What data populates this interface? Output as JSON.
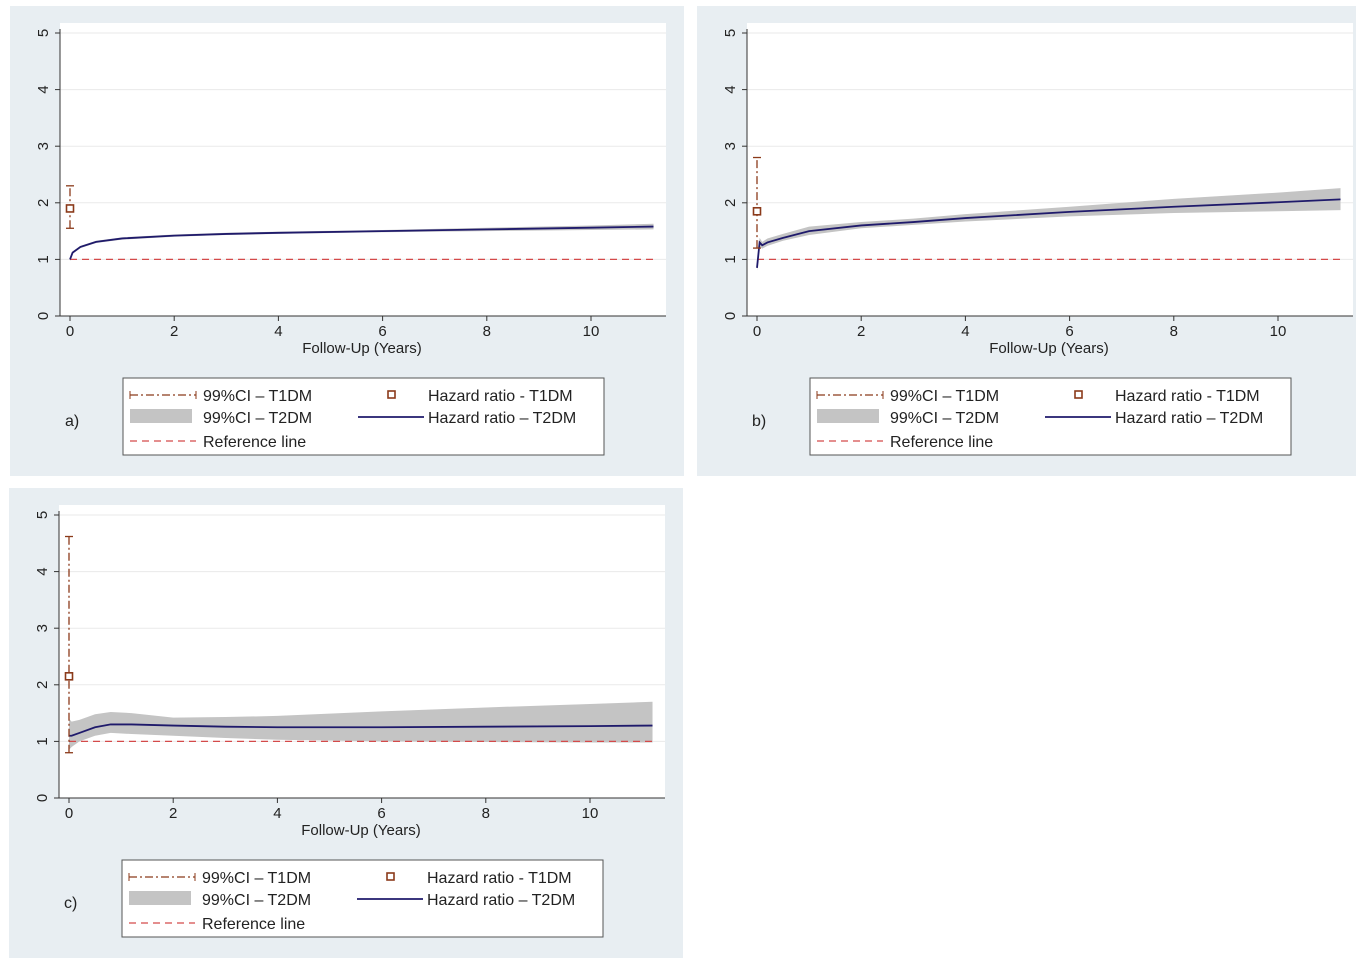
{
  "legend": {
    "ci_t1": "99%CI – T1DM",
    "hr_t1": "Hazard ratio -  T1DM",
    "ci_t2": "99%CI – T2DM",
    "hr_t2": "Hazard ratio – T2DM",
    "ref": "Reference line"
  },
  "colors": {
    "panel_bg": "#e8eef2",
    "plot_bg": "#ffffff",
    "hr_t2_line": "#1f1a6b",
    "ci_band": "#c4c4c4",
    "reference_line": "#d44a4a",
    "t1_marker": "#8b3a1a"
  },
  "chart_data": [
    {
      "panel_label": "a)",
      "type": "line",
      "xlabel": "Follow-Up (Years)",
      "ylabel": "",
      "xlim": [
        0,
        11.5
      ],
      "ylim": [
        0,
        5
      ],
      "xticks": [
        0,
        2,
        4,
        6,
        8,
        10
      ],
      "yticks": [
        0,
        1,
        2,
        3,
        4,
        5
      ],
      "reference_line": 1,
      "t1dm": {
        "x": 0,
        "hr": 1.9,
        "ci_low": 1.55,
        "ci_high": 2.3
      },
      "t2dm": {
        "x": [
          0,
          0.05,
          0.2,
          0.5,
          1,
          2,
          3,
          4,
          6,
          8,
          10,
          11.2
        ],
        "hr": [
          1.0,
          1.12,
          1.22,
          1.31,
          1.37,
          1.42,
          1.45,
          1.47,
          1.5,
          1.53,
          1.56,
          1.58
        ],
        "low": [
          0.97,
          1.1,
          1.2,
          1.29,
          1.35,
          1.4,
          1.43,
          1.45,
          1.48,
          1.5,
          1.52,
          1.53
        ],
        "high": [
          1.03,
          1.14,
          1.24,
          1.33,
          1.39,
          1.44,
          1.47,
          1.49,
          1.52,
          1.56,
          1.6,
          1.63
        ]
      }
    },
    {
      "panel_label": "b)",
      "type": "line",
      "xlabel": "Follow-Up (Years)",
      "ylabel": "",
      "xlim": [
        0,
        11.5
      ],
      "ylim": [
        0,
        5
      ],
      "xticks": [
        0,
        2,
        4,
        6,
        8,
        10
      ],
      "yticks": [
        0,
        1,
        2,
        3,
        4,
        5
      ],
      "reference_line": 1,
      "t1dm": {
        "x": 0,
        "hr": 1.85,
        "ci_low": 1.2,
        "ci_high": 2.8
      },
      "t2dm": {
        "x": [
          0,
          0.05,
          0.1,
          0.2,
          0.5,
          1,
          2,
          3,
          4,
          6,
          8,
          10,
          11.2
        ],
        "hr": [
          0.85,
          1.3,
          1.25,
          1.3,
          1.38,
          1.5,
          1.6,
          1.66,
          1.73,
          1.84,
          1.93,
          2.01,
          2.06
        ],
        "low": [
          0.8,
          1.22,
          1.19,
          1.24,
          1.33,
          1.43,
          1.55,
          1.61,
          1.67,
          1.76,
          1.82,
          1.85,
          1.87
        ],
        "high": [
          0.9,
          1.38,
          1.31,
          1.37,
          1.45,
          1.58,
          1.66,
          1.72,
          1.8,
          1.93,
          2.07,
          2.18,
          2.26
        ]
      }
    },
    {
      "panel_label": "c)",
      "type": "line",
      "xlabel": "Follow-Up (Years)",
      "ylabel": "",
      "xlim": [
        0,
        11.5
      ],
      "ylim": [
        0,
        5
      ],
      "xticks": [
        0,
        2,
        4,
        6,
        8,
        10
      ],
      "yticks": [
        0,
        1,
        2,
        3,
        4,
        5
      ],
      "reference_line": 1,
      "t1dm": {
        "x": 0,
        "hr": 2.15,
        "ci_low": 0.8,
        "ci_high": 4.62
      },
      "t2dm": {
        "x": [
          0,
          0.05,
          0.2,
          0.5,
          0.8,
          1.2,
          2,
          3,
          4,
          6,
          8,
          10,
          11.2
        ],
        "hr": [
          1.1,
          1.1,
          1.15,
          1.25,
          1.3,
          1.3,
          1.28,
          1.26,
          1.25,
          1.25,
          1.26,
          1.27,
          1.28
        ],
        "low": [
          0.85,
          0.9,
          1.0,
          1.1,
          1.15,
          1.13,
          1.1,
          1.06,
          1.03,
          1.0,
          0.99,
          0.98,
          0.98
        ],
        "high": [
          1.4,
          1.35,
          1.38,
          1.48,
          1.52,
          1.5,
          1.42,
          1.43,
          1.45,
          1.53,
          1.6,
          1.66,
          1.7
        ]
      }
    }
  ]
}
